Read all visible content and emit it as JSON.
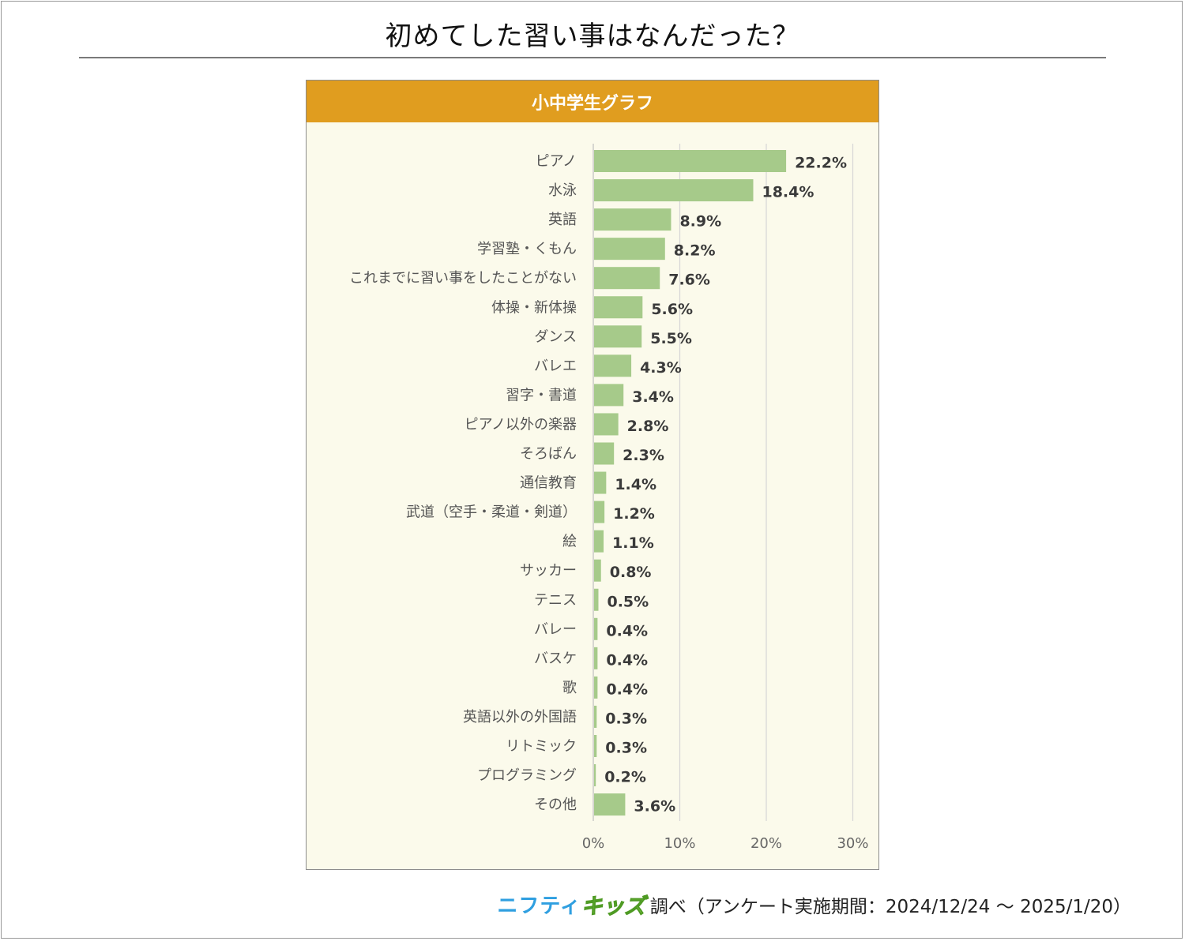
{
  "page": {
    "title": "初めてした習い事はなんだった？",
    "panel_title": "小中学生グラフ",
    "footer_logo_part1": "ニフティ",
    "footer_logo_part2": "キッズ",
    "footer_text": "調べ（アンケート実施期間：2024/12/24 ～ 2025/1/20）"
  },
  "colors": {
    "bar": "#a6ca8a",
    "header": "#e09d1f",
    "panel_bg": "#fbfaeb",
    "grid": "#d6d6d6",
    "label_text": "#555555",
    "value_text": "#3a3a3a"
  },
  "chart_data": {
    "type": "bar",
    "orientation": "horizontal",
    "title": "小中学生グラフ",
    "categories": [
      "ピアノ",
      "水泳",
      "英語",
      "学習塾・くもん",
      "これまでに習い事をしたことがない",
      "体操・新体操",
      "ダンス",
      "バレエ",
      "習字・書道",
      "ピアノ以外の楽器",
      "そろばん",
      "通信教育",
      "武道（空手・柔道・剣道）",
      "絵",
      "サッカー",
      "テニス",
      "バレー",
      "バスケ",
      "歌",
      "英語以外の外国語",
      "リトミック",
      "プログラミング",
      "その他"
    ],
    "values": [
      22.2,
      18.4,
      8.9,
      8.2,
      7.6,
      5.6,
      5.5,
      4.3,
      3.4,
      2.8,
      2.3,
      1.4,
      1.2,
      1.1,
      0.8,
      0.5,
      0.4,
      0.4,
      0.4,
      0.3,
      0.3,
      0.2,
      3.6
    ],
    "value_labels": [
      "22.2%",
      "18.4%",
      "8.9%",
      "8.2%",
      "7.6%",
      "5.6%",
      "5.5%",
      "4.3%",
      "3.4%",
      "2.8%",
      "2.3%",
      "1.4%",
      "1.2%",
      "1.1%",
      "0.8%",
      "0.5%",
      "0.4%",
      "0.4%",
      "0.4%",
      "0.3%",
      "0.3%",
      "0.2%",
      "3.6%"
    ],
    "xlim": [
      0,
      30
    ],
    "x_ticks": [
      "0%",
      "10%",
      "20%",
      "30%"
    ],
    "x_tick_values": [
      0,
      10,
      20,
      30
    ],
    "xlabel": "",
    "ylabel": "",
    "grid": true,
    "legend": "none"
  }
}
